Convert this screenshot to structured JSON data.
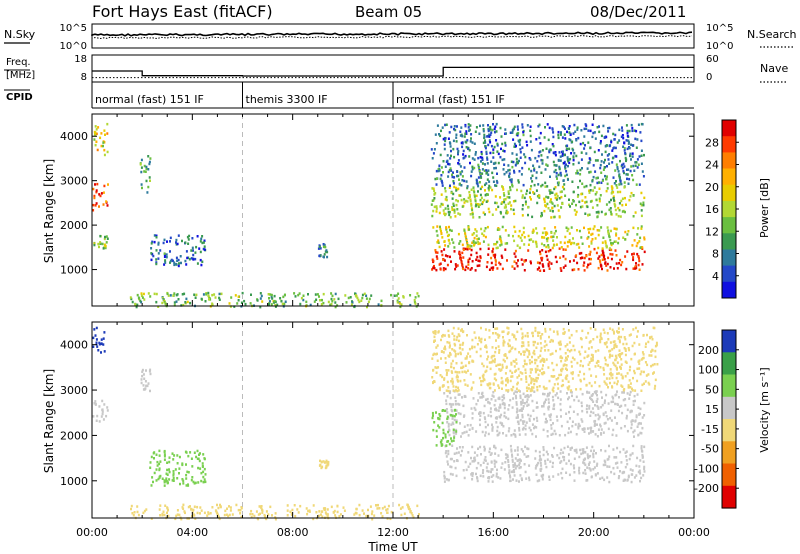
{
  "header": {
    "station": "Fort Hays East (fitACF)",
    "beam": "Beam 05",
    "date": "08/Dec/2011"
  },
  "top_panel": {
    "left_label": "N.Sky",
    "right_label": "N.Search",
    "left_ticks": [
      "10^5",
      "10^0"
    ],
    "right_ticks": [
      "10^5",
      "10^0"
    ]
  },
  "freq_panel": {
    "left_label_1": "Freq.",
    "left_label_2": "[MHz]",
    "right_label": "Nave",
    "left_ticks": [
      "18",
      "8"
    ],
    "right_ticks": [
      "60",
      "0"
    ],
    "freq_steps_mhz": [
      {
        "t0": 0.0,
        "t1": 2.0,
        "value": 13.0
      },
      {
        "t0": 2.0,
        "t1": 6.0,
        "value": 10.4
      },
      {
        "t0": 6.0,
        "t1": 14.0,
        "value": 10.2
      },
      {
        "t0": 14.0,
        "t1": 24.0,
        "value": 15.0
      }
    ],
    "nave_level": 8
  },
  "cpid": {
    "label": "CPID",
    "segments": [
      {
        "t0": 0,
        "t1": 6,
        "text": "normal (fast) 151 IF"
      },
      {
        "t0": 6,
        "t1": 12,
        "text": "themis 3300 IF"
      },
      {
        "t0": 12,
        "t1": 24,
        "text": "normal (fast) 151 IF"
      }
    ]
  },
  "colorbars": {
    "power": {
      "title": "Power [dB]",
      "labels": [
        "28",
        "24",
        "20",
        "16",
        "12",
        "8",
        "4"
      ],
      "colors": [
        "#e00000",
        "#ff3a00",
        "#ff7e00",
        "#ffb000",
        "#e8cc00",
        "#b2d834",
        "#6abf40",
        "#3a9a50",
        "#2e7a9c",
        "#2448c8",
        "#1010e0"
      ]
    },
    "velocity": {
      "title": "Velocity [m s⁻¹]",
      "labels": [
        "200",
        "100",
        "50",
        "15",
        "-15",
        "-50",
        "-100",
        "-200"
      ],
      "colors": [
        "#1c3ab8",
        "#3aa048",
        "#7ad050",
        "#c8c8c8",
        "#f0d878",
        "#f0a020",
        "#f06000",
        "#e00000"
      ]
    }
  },
  "chart_data": [
    {
      "type": "heatmap",
      "title": "Power",
      "xlabel": "",
      "ylabel": "Slant Range [km]",
      "x_ticks": [
        "00:00",
        "04:00",
        "08:00",
        "12:00",
        "16:00",
        "20:00",
        "00:00"
      ],
      "xlim": [
        0,
        24
      ],
      "ylim": [
        180,
        4500
      ],
      "y_ticks": [
        1000,
        2000,
        3000,
        4000
      ],
      "colorbar_label": "Power [dB]",
      "clim": [
        0,
        30
      ],
      "regions": [
        {
          "t0": 0.0,
          "t1": 0.6,
          "r0": 2350,
          "r1": 2950,
          "value": 26
        },
        {
          "t0": 0.0,
          "t1": 0.6,
          "r0": 3600,
          "r1": 4300,
          "value": 18
        },
        {
          "t0": 0.0,
          "t1": 0.6,
          "r0": 1500,
          "r1": 1800,
          "value": 14
        },
        {
          "t0": 1.9,
          "t1": 2.3,
          "r0": 2700,
          "r1": 3600,
          "value": 10
        },
        {
          "t0": 2.3,
          "t1": 4.5,
          "r0": 1100,
          "r1": 1800,
          "value": 6
        },
        {
          "t0": 9.0,
          "t1": 9.4,
          "r0": 1300,
          "r1": 1600,
          "value": 8
        },
        {
          "t0": 1.5,
          "t1": 13.0,
          "r0": 180,
          "r1": 500,
          "value": 12
        },
        {
          "t0": 13.5,
          "t1": 22.0,
          "r0": 1000,
          "r1": 1500,
          "value": 28
        },
        {
          "t0": 13.5,
          "t1": 22.0,
          "r0": 1500,
          "r1": 2000,
          "value": 16
        },
        {
          "t0": 13.5,
          "t1": 22.0,
          "r0": 2200,
          "r1": 2900,
          "value": 14
        },
        {
          "t0": 13.5,
          "t1": 22.0,
          "r0": 2900,
          "r1": 3400,
          "value": 8
        },
        {
          "t0": 13.5,
          "t1": 22.0,
          "r0": 3400,
          "r1": 4300,
          "value": 6
        }
      ]
    },
    {
      "type": "heatmap",
      "title": "Velocity",
      "xlabel": "Time UT",
      "ylabel": "Slant Range [km]",
      "x_ticks": [
        "00:00",
        "04:00",
        "08:00",
        "12:00",
        "16:00",
        "20:00",
        "00:00"
      ],
      "xlim": [
        0,
        24
      ],
      "ylim": [
        180,
        4500
      ],
      "y_ticks": [
        1000,
        2000,
        3000,
        4000
      ],
      "colorbar_label": "Velocity [m s⁻¹]",
      "clim": [
        -200,
        200
      ],
      "regions": [
        {
          "t0": 0.0,
          "t1": 0.5,
          "r0": 3800,
          "r1": 4400,
          "value": 200
        },
        {
          "t0": 0.0,
          "t1": 0.6,
          "r0": 2300,
          "r1": 2800,
          "value": 0
        },
        {
          "t0": 1.9,
          "t1": 2.3,
          "r0": 3000,
          "r1": 3500,
          "value": 0
        },
        {
          "t0": 2.2,
          "t1": 4.5,
          "r0": 900,
          "r1": 1700,
          "value": 40
        },
        {
          "t0": 9.0,
          "t1": 9.4,
          "r0": 1300,
          "r1": 1500,
          "value": -40
        },
        {
          "t0": 1.5,
          "t1": 13.0,
          "r0": 180,
          "r1": 500,
          "value": -30
        },
        {
          "t0": 14.0,
          "t1": 22.0,
          "r0": 1000,
          "r1": 1800,
          "value": 0
        },
        {
          "t0": 14.0,
          "t1": 22.0,
          "r0": 2000,
          "r1": 3000,
          "value": 0
        },
        {
          "t0": 13.5,
          "t1": 14.5,
          "r0": 1800,
          "r1": 2600,
          "value": 40
        },
        {
          "t0": 13.5,
          "t1": 22.5,
          "r0": 3000,
          "r1": 4400,
          "value": -30
        }
      ]
    }
  ]
}
